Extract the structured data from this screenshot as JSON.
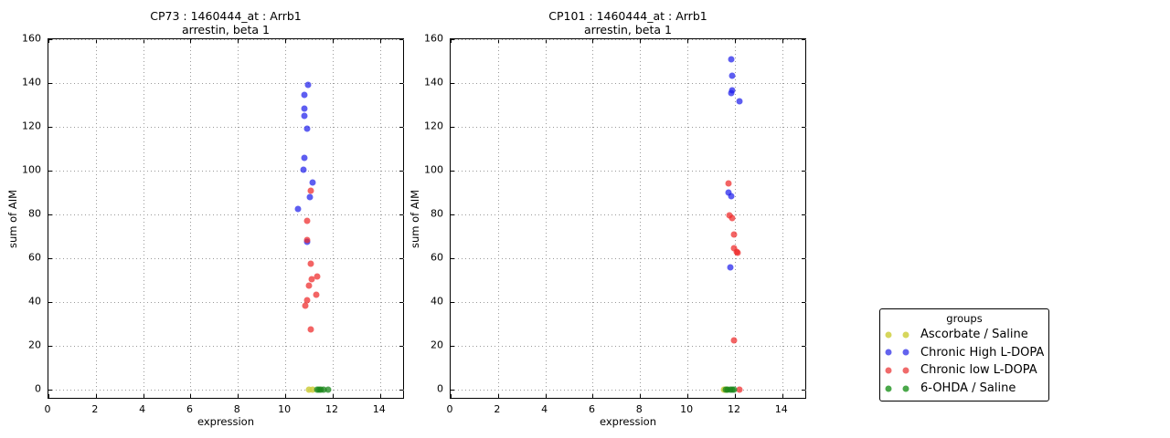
{
  "figure": {
    "background": "#ffffff",
    "grid_color": "#999999",
    "spine_color": "#000000"
  },
  "chart_data": [
    {
      "type": "scatter",
      "title": "CP73 : 1460444_at : Arrb1",
      "subtitle": "arrestin, beta 1",
      "xlabel": "expression",
      "ylabel": "sum of AIM",
      "xlim": [
        0,
        15.05
      ],
      "ylim": [
        -4.6,
        160
      ],
      "xticks": [
        0,
        2,
        4,
        6,
        8,
        10,
        12,
        14
      ],
      "yticks": [
        0,
        20,
        40,
        60,
        80,
        100,
        120,
        140,
        160
      ],
      "grid": true,
      "legend_position": "outside-right",
      "series": [
        {
          "name": "Ascorbate / Saline",
          "color": "rgba(205,205,60,0.85)",
          "points": [
            [
              10.98,
              0
            ],
            [
              11.15,
              0
            ]
          ]
        },
        {
          "name": "Chronic High L-DOPA",
          "color": "rgba(25,25,235,0.70)",
          "points": [
            [
              10.97,
              139
            ],
            [
              10.81,
              134.5
            ],
            [
              10.82,
              128.5
            ],
            [
              10.81,
              125
            ],
            [
              10.93,
              119
            ],
            [
              10.82,
              106
            ],
            [
              10.75,
              100.5
            ],
            [
              11.16,
              94.5
            ],
            [
              11.05,
              88
            ],
            [
              10.54,
              82.5
            ],
            [
              10.93,
              67.5
            ]
          ]
        },
        {
          "name": "Chronic low L-DOPA",
          "color": "rgba(238,40,40,0.72)",
          "points": [
            [
              11.08,
              91
            ],
            [
              10.92,
              77
            ],
            [
              10.94,
              68.5
            ],
            [
              11.08,
              57.5
            ],
            [
              11.34,
              51.5
            ],
            [
              11.12,
              50.5
            ],
            [
              10.99,
              47.5
            ],
            [
              11.29,
              43.5
            ],
            [
              10.93,
              41
            ],
            [
              10.86,
              38.5
            ],
            [
              11.09,
              27.5
            ]
          ]
        },
        {
          "name": "6-OHDA / Saline",
          "color": "rgba(25,135,25,0.75)",
          "points": [
            [
              11.33,
              0
            ],
            [
              11.42,
              0
            ],
            [
              11.5,
              0
            ],
            [
              11.6,
              0
            ],
            [
              11.79,
              0
            ]
          ]
        }
      ]
    },
    {
      "type": "scatter",
      "title": "CP101 : 1460444_at : Arrb1",
      "subtitle": "arrestin, beta 1",
      "xlabel": "expression",
      "ylabel": "sum of AIM",
      "xlim": [
        0,
        15.05
      ],
      "ylim": [
        -4.6,
        160
      ],
      "xticks": [
        0,
        2,
        4,
        6,
        8,
        10,
        12,
        14
      ],
      "yticks": [
        0,
        20,
        40,
        60,
        80,
        100,
        120,
        140,
        160
      ],
      "grid": true,
      "legend_position": "outside-right",
      "series": [
        {
          "name": "Ascorbate / Saline",
          "color": "rgba(205,205,60,0.85)",
          "points": [
            [
              11.55,
              0
            ],
            [
              11.67,
              0
            ]
          ]
        },
        {
          "name": "Chronic High L-DOPA",
          "color": "rgba(25,25,235,0.70)",
          "points": [
            [
              11.83,
              151
            ],
            [
              11.87,
              143.5
            ],
            [
              11.87,
              136.5
            ],
            [
              11.83,
              135.5
            ],
            [
              12.19,
              131.5
            ],
            [
              11.74,
              90
            ],
            [
              11.85,
              88.5
            ],
            [
              11.79,
              56
            ]
          ]
        },
        {
          "name": "Chronic low L-DOPA",
          "color": "rgba(238,40,40,0.72)",
          "points": [
            [
              11.74,
              94
            ],
            [
              11.77,
              79.5
            ],
            [
              11.88,
              78.5
            ],
            [
              11.97,
              71
            ],
            [
              11.95,
              64.5
            ],
            [
              12.06,
              63
            ],
            [
              12.11,
              62.5
            ],
            [
              11.97,
              22.5
            ],
            [
              12.2,
              0
            ]
          ]
        },
        {
          "name": "6-OHDA / Saline",
          "color": "rgba(25,135,25,0.75)",
          "points": [
            [
              11.62,
              0
            ],
            [
              11.71,
              0
            ],
            [
              11.79,
              0
            ],
            [
              11.87,
              0
            ],
            [
              11.97,
              0
            ]
          ]
        }
      ]
    }
  ],
  "legend": {
    "title": "groups",
    "entries": [
      {
        "label": "Ascorbate / Saline",
        "color": "#d6d65c"
      },
      {
        "label": "Chronic High L-DOPA",
        "color": "#6363ee"
      },
      {
        "label": "Chronic low L-DOPA",
        "color": "#f06a6a"
      },
      {
        "label": "6-OHDA / Saline",
        "color": "#4aa84a"
      }
    ]
  }
}
